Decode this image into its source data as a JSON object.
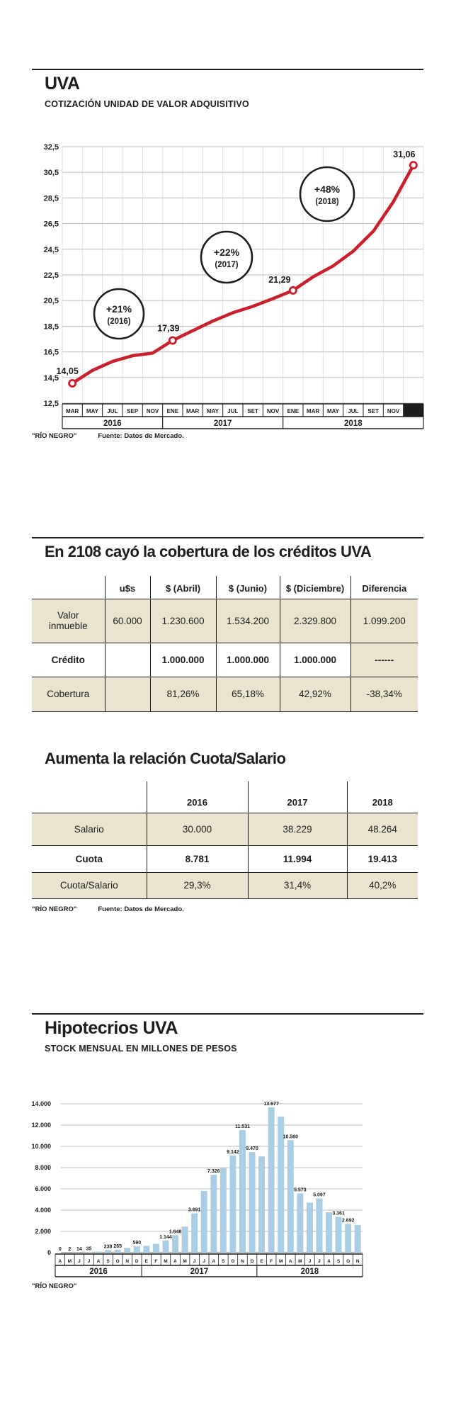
{
  "brand": "\"RÍO NEGRO\"",
  "source_note": "Fuente: Datos de Mercado.",
  "chart_data": [
    {
      "type": "line",
      "title": "UVA",
      "subtitle": "COTIZACIÓN UNIDAD DE VALOR ADQUISITIVO",
      "categories": [
        "MAR",
        "MAY",
        "JUL",
        "SEP",
        "NOV",
        "ENE",
        "MAR",
        "MAY",
        "JUL",
        "SET",
        "NOV",
        "ENE",
        "MAR",
        "MAY",
        "JUL",
        "SET",
        "NOV",
        "DIC"
      ],
      "year_groups": [
        {
          "label": "2016",
          "span": 5
        },
        {
          "label": "2017",
          "span": 6
        },
        {
          "label": "2018",
          "span": 7
        }
      ],
      "values": [
        14.05,
        15.05,
        15.75,
        16.2,
        16.4,
        17.39,
        18.15,
        18.9,
        19.55,
        20.05,
        20.65,
        21.29,
        22.35,
        23.2,
        24.35,
        25.9,
        28.2,
        31.06
      ],
      "point_labels": [
        {
          "index": 0,
          "label": "14,05"
        },
        {
          "index": 5,
          "label": "17,39"
        },
        {
          "index": 11,
          "label": "21,29"
        },
        {
          "index": 17,
          "label": "31,06"
        }
      ],
      "annotations": [
        {
          "line1": "+21%",
          "line2": "(2016)"
        },
        {
          "line1": "+22%",
          "line2": "(2017)"
        },
        {
          "line1": "+48%",
          "line2": "(2018)"
        }
      ],
      "ylim": [
        12.5,
        32.5
      ],
      "y_tick_labels": [
        "32,5",
        "30,5",
        "28,5",
        "26,5",
        "24,5",
        "22,5",
        "20,5",
        "18,5",
        "16,5",
        "14,5",
        "12,5"
      ],
      "highlighted_month": "DIC",
      "line_color": "#c9202b",
      "grid": true,
      "legend": "none"
    },
    {
      "type": "table",
      "title": "En 2108 cayó la cobertura de los créditos UVA",
      "headers": [
        "",
        "u$s",
        "$ (Abril)",
        "$ (Junio)",
        "$ (Diciembre)",
        "Diferencia"
      ],
      "rows": [
        [
          "Valor inmueble",
          "60.000",
          "1.230.600",
          "1.534.200",
          "2.329.800",
          "1.099.200"
        ],
        [
          "Crédito",
          "",
          "1.000.000",
          "1.000.000",
          "1.000.000",
          "------"
        ],
        [
          "Cobertura",
          "",
          "81,26%",
          "65,18%",
          "42,92%",
          "-38,34%"
        ]
      ]
    },
    {
      "type": "table",
      "title": "Aumenta la relación Cuota/Salario",
      "headers": [
        "",
        "2016",
        "2017",
        "2018"
      ],
      "rows": [
        [
          "Salario",
          "30.000",
          "38.229",
          "48.264"
        ],
        [
          "Cuota",
          "8.781",
          "11.994",
          "19.413"
        ],
        [
          "Cuota/Salario",
          "29,3%",
          "31,4%",
          "40,2%"
        ]
      ]
    },
    {
      "type": "bar",
      "title": "Hipotecrios UVA",
      "subtitle": "STOCK MENSUAL EN MILLONES DE PESOS",
      "categories": [
        "A",
        "M",
        "J",
        "J",
        "A",
        "S",
        "O",
        "N",
        "D",
        "E",
        "F",
        "M",
        "A",
        "M",
        "J",
        "J",
        "A",
        "S",
        "O",
        "N",
        "D",
        "E",
        "F",
        "M",
        "A",
        "M",
        "J",
        "J",
        "A",
        "S",
        "O",
        "N"
      ],
      "year_groups": [
        {
          "label": "2016",
          "span": 9
        },
        {
          "label": "2017",
          "span": 12
        },
        {
          "label": "2018",
          "span": 11
        }
      ],
      "values": [
        0,
        2,
        14,
        35,
        100,
        238,
        265,
        440,
        590,
        640,
        830,
        1144,
        1648,
        2450,
        3691,
        5800,
        7326,
        7950,
        9142,
        11531,
        9470,
        9050,
        13677,
        12800,
        10580,
        5573,
        4700,
        5097,
        3800,
        3361,
        2692,
        2600
      ],
      "bar_labels": [
        {
          "index": 0,
          "label": "0"
        },
        {
          "index": 1,
          "label": "2"
        },
        {
          "index": 2,
          "label": "14"
        },
        {
          "index": 3,
          "label": "35"
        },
        {
          "index": 5,
          "label": "238"
        },
        {
          "index": 6,
          "label": "265"
        },
        {
          "index": 8,
          "label": "590"
        },
        {
          "index": 11,
          "label": "1.144"
        },
        {
          "index": 12,
          "label": "1.648"
        },
        {
          "index": 14,
          "label": "3.691"
        },
        {
          "index": 16,
          "label": "7.326"
        },
        {
          "index": 18,
          "label": "9.142"
        },
        {
          "index": 19,
          "label": "11.531"
        },
        {
          "index": 20,
          "label": "9.470"
        },
        {
          "index": 22,
          "label": "13.677"
        },
        {
          "index": 24,
          "label": "10.580"
        },
        {
          "index": 25,
          "label": "5.573"
        },
        {
          "index": 27,
          "label": "5.097"
        },
        {
          "index": 29,
          "label": "3.361"
        },
        {
          "index": 30,
          "label": "2.692"
        }
      ],
      "ylim": [
        0,
        14000
      ],
      "y_tick_labels": [
        "14.000",
        "12.000",
        "10.000",
        "8.000",
        "6.000",
        "4.000",
        "2.000",
        "0"
      ],
      "bar_color": "#a9cee3",
      "grid": true,
      "legend": "none"
    }
  ]
}
